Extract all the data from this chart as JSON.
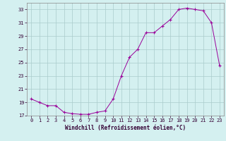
{
  "hours": [
    0,
    1,
    2,
    3,
    4,
    5,
    6,
    7,
    8,
    9,
    10,
    11,
    12,
    13,
    14,
    15,
    16,
    17,
    18,
    19,
    20,
    21,
    22,
    23
  ],
  "values": [
    19.5,
    19.0,
    18.5,
    18.5,
    17.5,
    17.3,
    17.2,
    17.2,
    17.5,
    17.7,
    19.5,
    23.0,
    25.8,
    27.0,
    29.5,
    29.5,
    30.5,
    31.5,
    33.0,
    33.2,
    33.0,
    32.8,
    31.0,
    24.5
  ],
  "line_color": "#990099",
  "marker": "P",
  "bg_color": "#d4f0f0",
  "grid_color": "#aacccc",
  "xlabel": "Windchill (Refroidissement éolien,°C)",
  "xlim_min": -0.5,
  "xlim_max": 23.5,
  "ylim_min": 17,
  "ylim_max": 34,
  "yticks": [
    17,
    19,
    21,
    23,
    25,
    27,
    29,
    31,
    33
  ],
  "xticks": [
    0,
    1,
    2,
    3,
    4,
    5,
    6,
    7,
    8,
    9,
    10,
    11,
    12,
    13,
    14,
    15,
    16,
    17,
    18,
    19,
    20,
    21,
    22,
    23
  ],
  "tick_fontsize": 5,
  "xlabel_fontsize": 5.5
}
